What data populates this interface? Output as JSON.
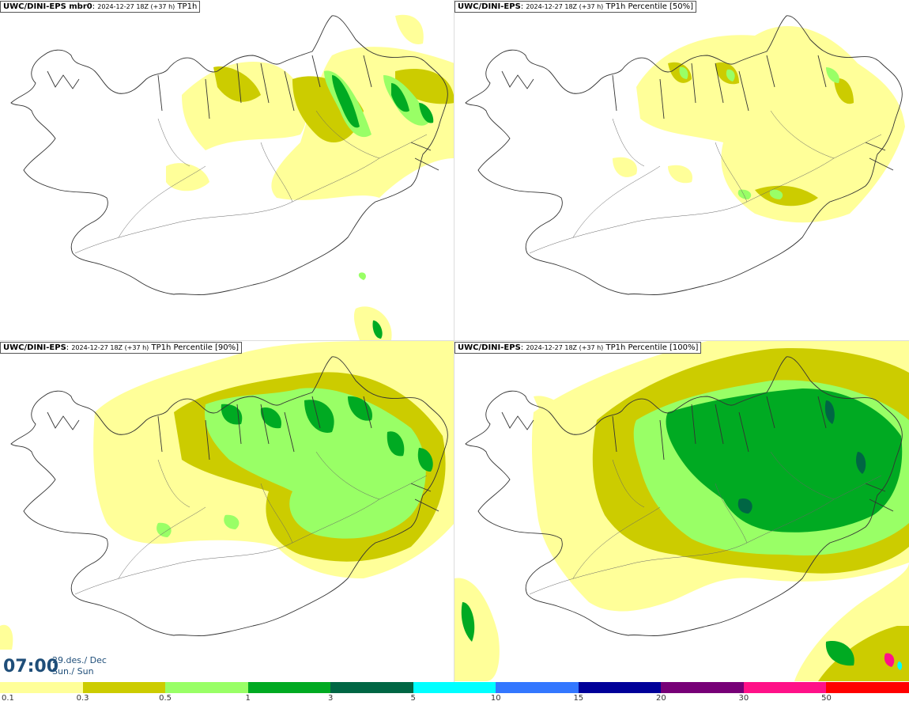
{
  "panels": [
    {
      "model": "UWC/DINI-EPS mbr0",
      "meta": "2024-12-27 18Z (+37 h)",
      "product": "TP1h"
    },
    {
      "model": "UWC/DINI-EPS",
      "meta": "2024-12-27 18Z (+37 h)",
      "product": "TP1h Percentile [50%]"
    },
    {
      "model": "UWC/DINI-EPS",
      "meta": "2024-12-27 18Z (+37 h)",
      "product": "TP1h Percentile [90%]"
    },
    {
      "model": "UWC/DINI-EPS",
      "meta": "2024-12-27 18Z (+37 h)",
      "product": "TP1h Percentile [100%]"
    }
  ],
  "valid_time": {
    "time": "07:00",
    "date": "29.des./ Dec",
    "day": "Sun./ Sun"
  },
  "colorbar": {
    "ticks": [
      "0.1",
      "0.3",
      "0.5",
      "1",
      "3",
      "5",
      "10",
      "15",
      "20",
      "30",
      "50"
    ],
    "colors": [
      "#ffff99",
      "#cccc00",
      "#99ff66",
      "#00aa22",
      "#006644",
      "#00ffff",
      "#3377ff",
      "#000099",
      "#770077",
      "#ff1188",
      "#ff0000"
    ]
  },
  "map_colors": {
    "land": "#ffffff",
    "coast": "#333333",
    "roads": "#666666",
    "rain_01": "#ffff99",
    "rain_03": "#cccc00",
    "rain_05": "#99ff66",
    "rain_1": "#00aa22",
    "rain_3": "#006644"
  }
}
